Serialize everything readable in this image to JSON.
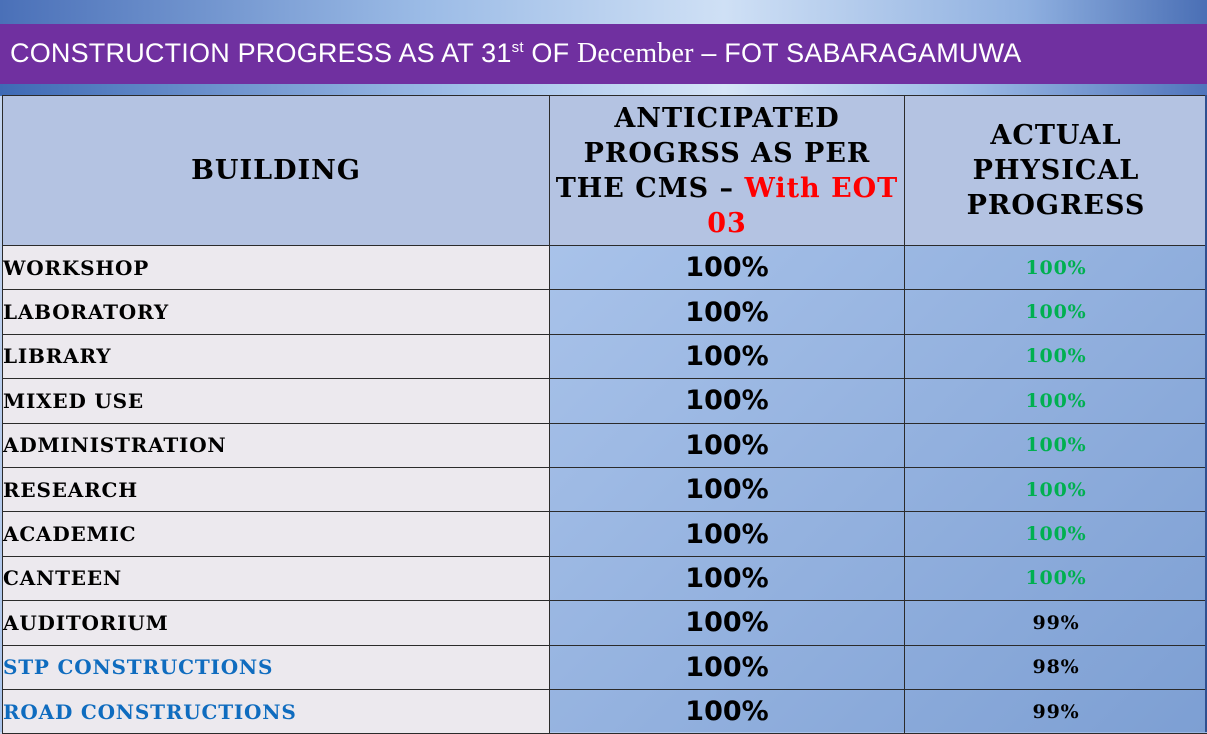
{
  "title": {
    "prefix": "CONSTRUCTION PROGRESS  AS AT 31",
    "superscript": "st",
    "middle": " OF ",
    "month": "December",
    "suffix": " – FOT SABARAGAMUWA"
  },
  "table": {
    "headers": {
      "building": "BUILDING",
      "anticipated_main": "ANTICIPATED PROGRSS AS PER THE CMS – ",
      "anticipated_highlight": "With EOT 03",
      "actual": "ACTUAL PHYSICAL PROGRESS"
    },
    "rows": [
      {
        "building": "WORKSHOP",
        "anticipated": "100%",
        "actual": "100%"
      },
      {
        "building": "LABORATORY",
        "anticipated": "100%",
        "actual": "100%"
      },
      {
        "building": "LIBRARY",
        "anticipated": "100%",
        "actual": "100%"
      },
      {
        "building": "MIXED USE",
        "anticipated": "100%",
        "actual": "100%"
      },
      {
        "building": "ADMINISTRATION",
        "anticipated": "100%",
        "actual": "100%"
      },
      {
        "building": "RESEARCH",
        "anticipated": "100%",
        "actual": "100%"
      },
      {
        "building": "ACADEMIC",
        "anticipated": "100%",
        "actual": "100%"
      },
      {
        "building": "CANTEEN",
        "anticipated": "100%",
        "actual": "100%"
      },
      {
        "building": "AUDITORIUM",
        "anticipated": "100%",
        "actual": "99%"
      },
      {
        "building": "STP CONSTRUCTIONS",
        "anticipated": "100%",
        "actual": "98%"
      },
      {
        "building": "ROAD CONSTRUCTIONS",
        "anticipated": "100%",
        "actual": "99%"
      }
    ]
  },
  "colors": {
    "title_bar": "#7030a0",
    "header_fill": "#b4c3e2",
    "complete": "#00b050",
    "highlight_red": "#ff0000",
    "blue_label": "#0f6cbf"
  }
}
